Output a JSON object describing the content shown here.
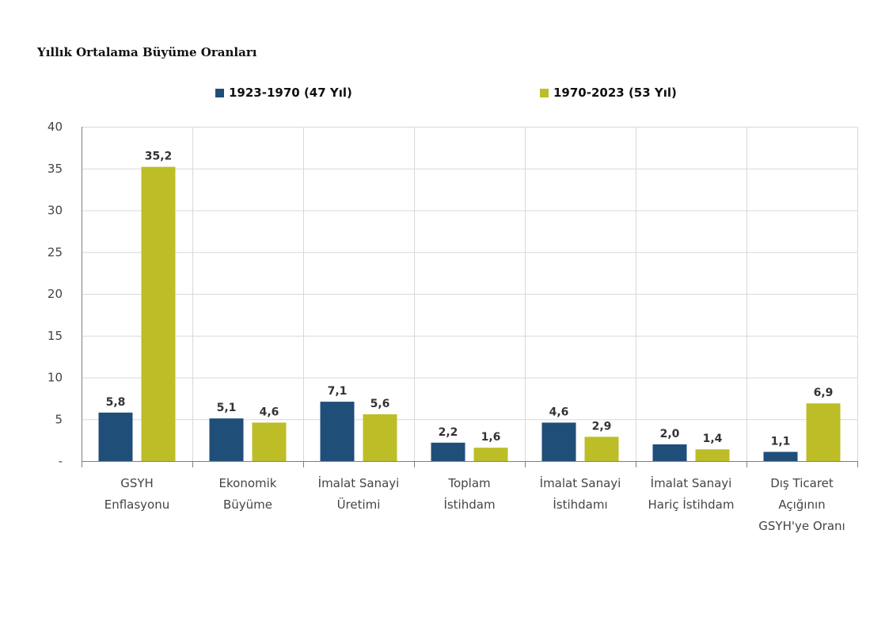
{
  "chart_data": {
    "type": "bar",
    "title": "Yıllık Ortalama Büyüme Oranları",
    "categories": [
      [
        "GSYH",
        "Enflasyonu"
      ],
      [
        "Ekonomik",
        "Büyüme"
      ],
      [
        "İmalat Sanayi",
        "Üretimi"
      ],
      [
        "Toplam",
        "İstihdam"
      ],
      [
        "İmalat Sanayi",
        "İstihdamı"
      ],
      [
        "İmalat Sanayi",
        "Hariç İstihdam"
      ],
      [
        "Dış Ticaret",
        "Açığının",
        "GSYH'ye Oranı"
      ]
    ],
    "series": [
      {
        "name": "1923-1970 (47 Yıl)",
        "color": "#1f4e79",
        "values": [
          5.8,
          5.1,
          7.1,
          2.2,
          4.6,
          2.0,
          1.1
        ],
        "labels": [
          "5,8",
          "5,1",
          "7,1",
          "2,2",
          "4,6",
          "2,0",
          "1,1"
        ]
      },
      {
        "name": "1970-2023 (53 Yıl)",
        "color": "#bdbd28",
        "values": [
          35.2,
          4.6,
          5.6,
          1.6,
          2.9,
          1.4,
          6.9
        ],
        "labels": [
          "35,2",
          "4,6",
          "5,6",
          "1,6",
          "2,9",
          "1,4",
          "6,9"
        ]
      }
    ],
    "ylim": [
      0,
      40
    ],
    "yticks": [
      0,
      5,
      10,
      15,
      20,
      25,
      30,
      35,
      40
    ],
    "ytick_labels": [
      "-",
      "5",
      "10",
      "15",
      "20",
      "25",
      "30",
      "35",
      "40"
    ],
    "grid": true,
    "legend": "top-center"
  }
}
